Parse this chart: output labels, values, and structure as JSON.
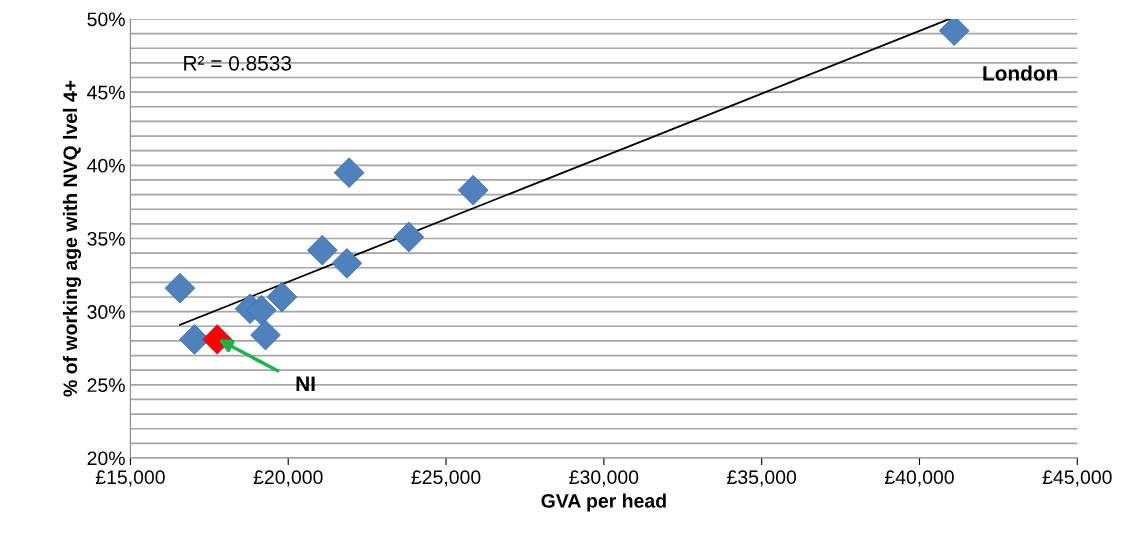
{
  "chart_data": {
    "type": "scatter",
    "xlabel": "GVA per head",
    "ylabel": "% of working age with NVQ lvel 4+",
    "series": [
      {
        "color": "#4f81bd",
        "marker": "diamond",
        "x": [
          16570,
          17030,
          17750,
          18790,
          19150,
          19280,
          19800,
          21080,
          21860,
          21930,
          23820,
          25860,
          41100
        ],
        "values": [
          31.6,
          28.1,
          28.1,
          30.2,
          30.1,
          28.4,
          31.0,
          34.2,
          33.3,
          39.5,
          35.1,
          38.3,
          49.2
        ],
        "colors": [
          null,
          null,
          "#ff0000",
          null,
          null,
          null,
          null,
          null,
          null,
          null,
          null,
          null,
          null
        ]
      },
      {
        "type": "line",
        "color": "#000000",
        "marker": "none",
        "x": [
          16570,
          40950
        ],
        "values": [
          29.1,
          50.0
        ]
      }
    ],
    "annotations": [
      "R² = 0.8533",
      {
        "text": "London",
        "x": 41100,
        "y": 49.2
      },
      "NI"
    ],
    "xlim": [
      15000,
      45000
    ],
    "xticks": [
      {
        "value": 15000,
        "label": "£15,000"
      },
      {
        "value": 20000,
        "label": "£20,000"
      },
      {
        "value": 25000,
        "label": "£25,000"
      },
      {
        "value": 30000,
        "label": "£30,000"
      },
      {
        "value": 35000,
        "label": "£35,000"
      },
      {
        "value": 40000,
        "label": "£40,000"
      },
      {
        "value": 45000,
        "label": "£45,000"
      }
    ],
    "ylim": [
      20,
      50
    ],
    "yticks": [
      {
        "value": 20,
        "label": "20%"
      },
      {
        "value": 21,
        "label": null
      },
      {
        "value": 22,
        "label": null
      },
      {
        "value": 23,
        "label": null
      },
      {
        "value": 24,
        "label": null
      },
      {
        "value": 25,
        "label": "25%"
      },
      {
        "value": 26,
        "label": null
      },
      {
        "value": 27,
        "label": null
      },
      {
        "value": 28,
        "label": null
      },
      {
        "value": 29,
        "label": null
      },
      {
        "value": 30,
        "label": "30%"
      },
      {
        "value": 31,
        "label": null
      },
      {
        "value": 32,
        "label": null
      },
      {
        "value": 33,
        "label": null
      },
      {
        "value": 34,
        "label": null
      },
      {
        "value": 35,
        "label": "35%"
      },
      {
        "value": 36,
        "label": null
      },
      {
        "value": 37,
        "label": null
      },
      {
        "value": 38,
        "label": null
      },
      {
        "value": 39,
        "label": null
      },
      {
        "value": 40,
        "label": "40%"
      },
      {
        "value": 41,
        "label": null
      },
      {
        "value": 42,
        "label": null
      },
      {
        "value": 43,
        "label": null
      },
      {
        "value": 44,
        "label": null
      },
      {
        "value": 45,
        "label": "45%"
      },
      {
        "value": 46,
        "label": null
      },
      {
        "value": 47,
        "label": null
      },
      {
        "value": 48,
        "label": null
      },
      {
        "value": 49,
        "label": null
      },
      {
        "value": 50,
        "label": "50%"
      }
    ],
    "grid": "y",
    "legend": false
  }
}
